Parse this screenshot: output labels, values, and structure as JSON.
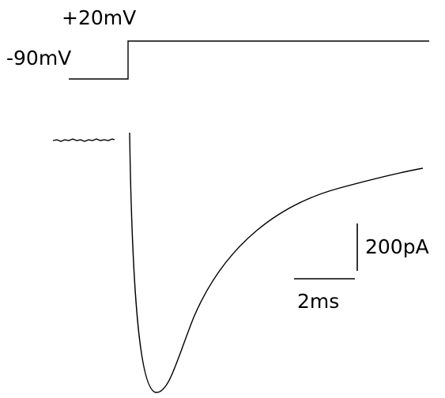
{
  "protocol": {
    "step_label": "+20mV",
    "holding_label": "-90mV"
  },
  "scale_bars": {
    "current_label": "200pA",
    "time_label": "2ms"
  }
}
